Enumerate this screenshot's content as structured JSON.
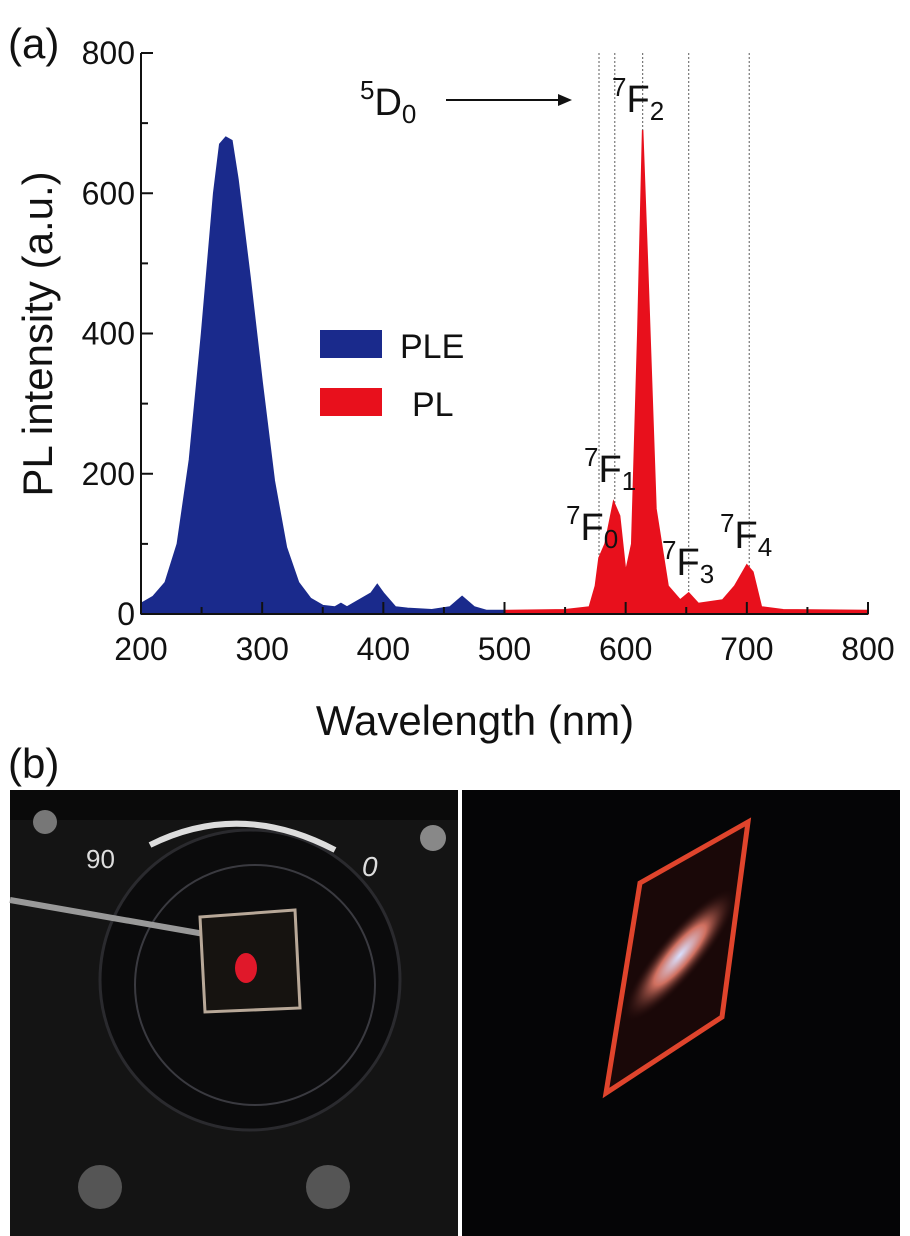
{
  "chart_data": {
    "type": "area",
    "panel_label": "(a)",
    "xlabel": "Wavelength (nm)",
    "ylabel": "PL intensity (a.u.)",
    "xlim": [
      200,
      800
    ],
    "ylim": [
      0,
      800
    ],
    "xticks": [
      200,
      300,
      400,
      500,
      600,
      700,
      800
    ],
    "yticks": [
      0,
      200,
      400,
      600,
      800
    ],
    "xticks_minor": [
      250,
      350,
      450,
      550,
      650,
      750
    ],
    "yticks_minor": [
      100,
      300,
      500,
      700
    ],
    "legend": "center left",
    "reference_lines": [
      578,
      591,
      614,
      652,
      702
    ],
    "series": [
      {
        "name": "PLE",
        "color": "#1a2a8c",
        "x": [
          200,
          210,
          220,
          230,
          240,
          250,
          260,
          265,
          270,
          275,
          280,
          290,
          300,
          310,
          320,
          330,
          340,
          350,
          360,
          365,
          370,
          380,
          390,
          395,
          400,
          410,
          420,
          440,
          455,
          465,
          475,
          485,
          500
        ],
        "values": [
          15,
          25,
          45,
          100,
          220,
          400,
          600,
          670,
          680,
          675,
          620,
          480,
          330,
          190,
          95,
          45,
          22,
          12,
          10,
          15,
          10,
          20,
          30,
          42,
          30,
          10,
          8,
          6,
          10,
          25,
          10,
          5,
          5
        ]
      },
      {
        "name": "PL",
        "color": "#e8101c",
        "x": [
          500,
          550,
          570,
          575,
          578,
          583,
          590,
          595,
          600,
          605,
          610,
          614,
          618,
          625,
          635,
          645,
          652,
          660,
          680,
          690,
          700,
          705,
          712,
          730,
          800
        ],
        "values": [
          5,
          6,
          10,
          40,
          80,
          100,
          160,
          140,
          60,
          100,
          400,
          690,
          500,
          150,
          40,
          20,
          30,
          15,
          20,
          40,
          70,
          60,
          10,
          6,
          5
        ]
      }
    ],
    "annotations": [
      {
        "sup": "5",
        "base": "D",
        "sub": "0"
      },
      {
        "sup": "7",
        "base": "F",
        "sub": "2"
      },
      {
        "sup": "7",
        "base": "F",
        "sub": "1"
      },
      {
        "sup": "7",
        "base": "F",
        "sub": "0"
      },
      {
        "sup": "7",
        "base": "F",
        "sub": "3"
      },
      {
        "sup": "7",
        "base": "F",
        "sub": "4"
      }
    ]
  },
  "photos": {
    "panel_label": "(b)",
    "dial_labels": [
      "90",
      "0"
    ]
  }
}
